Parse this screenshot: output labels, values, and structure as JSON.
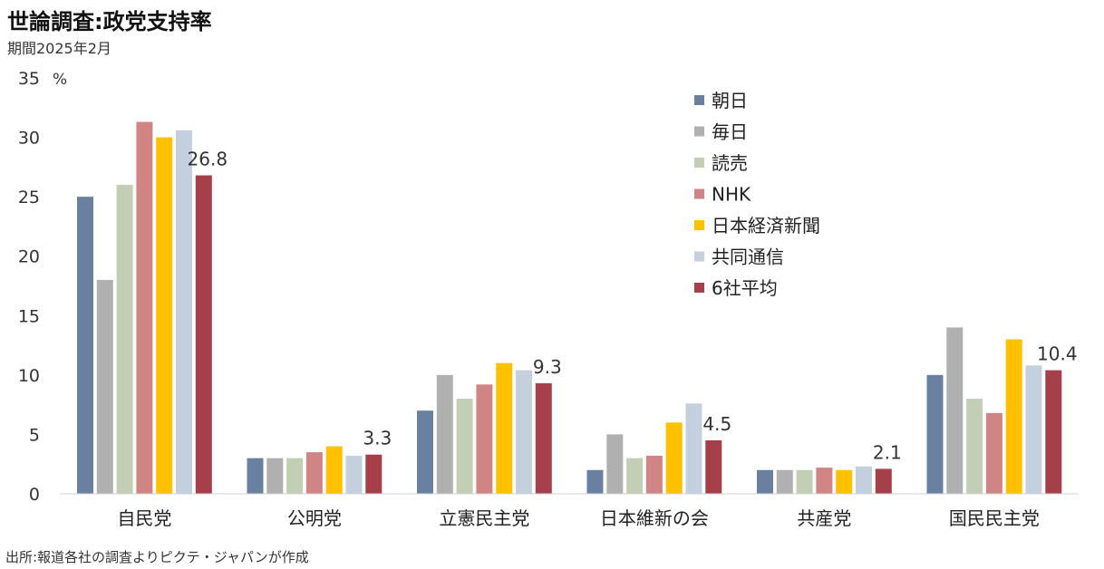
{
  "title": "世論調査:政党支持率",
  "subtitle": "期間2025年2月",
  "source": "出所:報道各社の調査よりピクテ・ジャパンが作成",
  "chart_data": {
    "type": "bar",
    "unit_label": "%",
    "ylim": [
      0,
      35
    ],
    "yticks": [
      0,
      5,
      10,
      15,
      20,
      25,
      30,
      35
    ],
    "categories": [
      "自民党",
      "公明党",
      "立憲民主党",
      "日本維新の会",
      "共産党",
      "国民民主党"
    ],
    "series": [
      {
        "name": "朝日",
        "color": "#6a80a0",
        "values": [
          25,
          3,
          7,
          2,
          2,
          10
        ]
      },
      {
        "name": "毎日",
        "color": "#b0b0b0",
        "values": [
          18,
          3,
          10,
          5,
          2,
          14
        ]
      },
      {
        "name": "読売",
        "color": "#c3cfb5",
        "values": [
          26,
          3,
          8,
          3,
          2,
          8
        ]
      },
      {
        "name": "NHK",
        "color": "#d08484",
        "values": [
          31.3,
          3.5,
          9.2,
          3.2,
          2.2,
          6.8
        ]
      },
      {
        "name": "日本経済新聞",
        "color": "#ffc000",
        "values": [
          30,
          4,
          11,
          6,
          2,
          13
        ]
      },
      {
        "name": "共同通信",
        "color": "#c5d0de",
        "values": [
          30.6,
          3.2,
          10.4,
          7.6,
          2.3,
          10.8
        ]
      },
      {
        "name": "6社平均",
        "color": "#a5404a",
        "values": [
          26.8,
          3.3,
          9.3,
          4.5,
          2.1,
          10.4
        ],
        "labels": [
          "26.8",
          "3.3",
          "9.3",
          "4.5",
          "2.1",
          "10.4"
        ]
      }
    ],
    "legend_position": "top-right",
    "grid": false
  }
}
